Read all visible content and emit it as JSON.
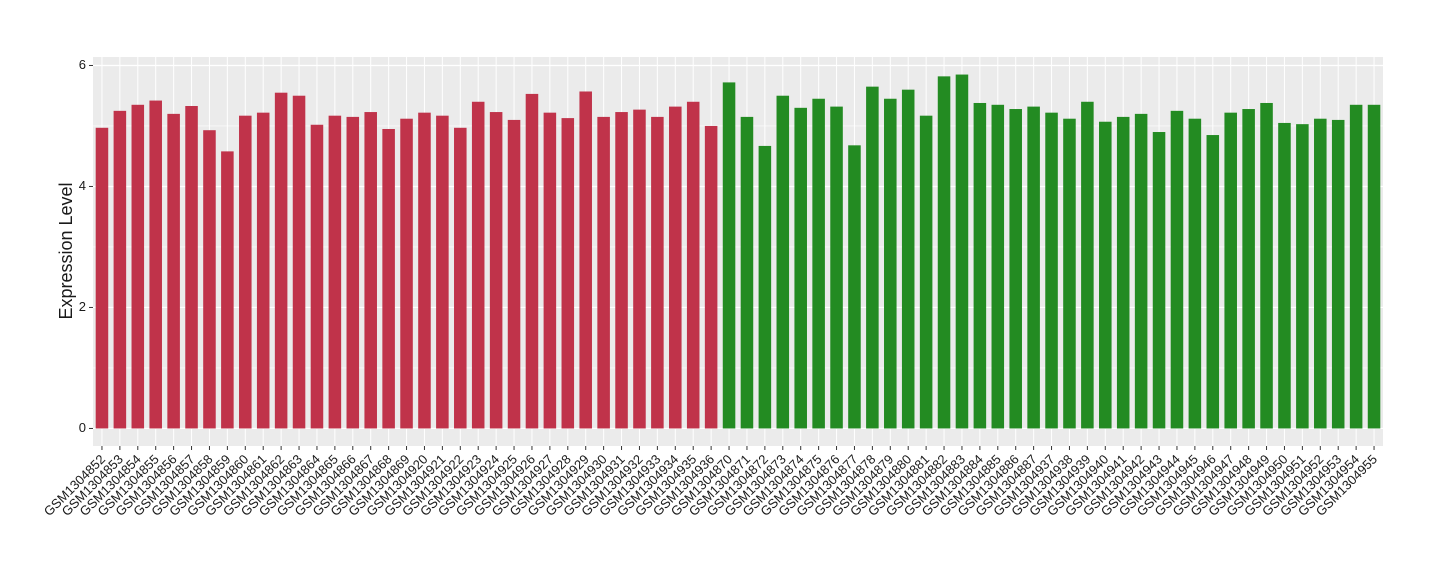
{
  "chart_data": {
    "type": "bar",
    "y_label": "Expression Level",
    "ylim": [
      -0.29,
      6.14
    ],
    "yticks": [
      0,
      2,
      4,
      6
    ],
    "grid": true,
    "series": [
      {
        "color": "#c0334a",
        "categories": [
          "GSM1304852",
          "GSM1304853",
          "GSM1304854",
          "GSM1304855",
          "GSM1304856",
          "GSM1304857",
          "GSM1304858",
          "GSM1304859",
          "GSM1304860",
          "GSM1304861",
          "GSM1304862",
          "GSM1304863",
          "GSM1304864",
          "GSM1304865",
          "GSM1304866",
          "GSM1304867",
          "GSM1304868",
          "GSM1304869",
          "GSM1304920",
          "GSM1304921",
          "GSM1304922",
          "GSM1304923",
          "GSM1304924",
          "GSM1304925",
          "GSM1304926",
          "GSM1304927",
          "GSM1304928",
          "GSM1304929",
          "GSM1304930",
          "GSM1304931",
          "GSM1304932",
          "GSM1304933",
          "GSM1304934",
          "GSM1304935",
          "GSM1304936"
        ],
        "values": [
          4.97,
          5.25,
          5.35,
          5.42,
          5.2,
          5.33,
          4.93,
          4.58,
          5.17,
          5.22,
          5.55,
          5.5,
          5.02,
          5.17,
          5.15,
          5.23,
          4.95,
          5.12,
          5.22,
          5.17,
          4.97,
          5.4,
          5.23,
          5.1,
          5.53,
          5.22,
          5.13,
          5.57,
          5.15,
          5.23,
          5.27,
          5.15,
          5.32,
          5.4,
          5.0
        ]
      },
      {
        "color": "#238b22",
        "categories": [
          "GSM1304870",
          "GSM1304871",
          "GSM1304872",
          "GSM1304873",
          "GSM1304874",
          "GSM1304875",
          "GSM1304876",
          "GSM1304877",
          "GSM1304878",
          "GSM1304879",
          "GSM1304880",
          "GSM1304881",
          "GSM1304882",
          "GSM1304883",
          "GSM1304884",
          "GSM1304885",
          "GSM1304886",
          "GSM1304887",
          "GSM1304937",
          "GSM1304938",
          "GSM1304939",
          "GSM1304940",
          "GSM1304941",
          "GSM1304942",
          "GSM1304943",
          "GSM1304944",
          "GSM1304945",
          "GSM1304946",
          "GSM1304947",
          "GSM1304948",
          "GSM1304949",
          "GSM1304950",
          "GSM1304951",
          "GSM1304952",
          "GSM1304953",
          "GSM1304954",
          "GSM1304955"
        ],
        "values": [
          5.72,
          5.15,
          4.67,
          5.5,
          5.3,
          5.45,
          5.32,
          4.68,
          5.65,
          5.45,
          5.6,
          5.17,
          5.82,
          5.85,
          5.38,
          5.35,
          5.28,
          5.32,
          5.22,
          5.12,
          5.4,
          5.07,
          5.15,
          5.2,
          4.9,
          5.25,
          5.12,
          4.85,
          5.22,
          5.28,
          5.38,
          5.05,
          5.03,
          5.12,
          5.1,
          5.35,
          5.35
        ]
      }
    ]
  }
}
